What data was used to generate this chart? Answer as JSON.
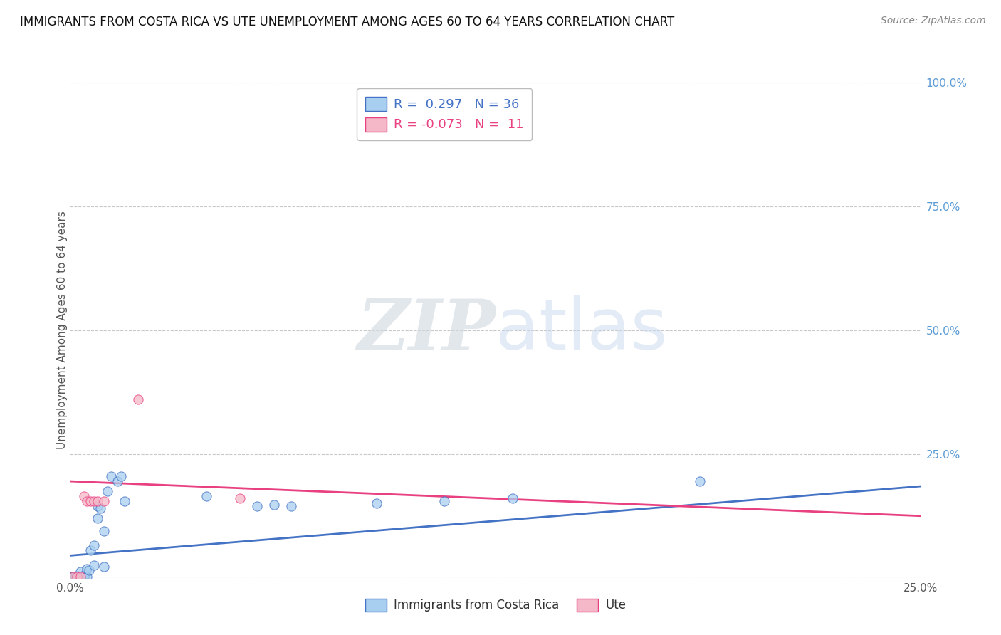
{
  "title": "IMMIGRANTS FROM COSTA RICA VS UTE UNEMPLOYMENT AMONG AGES 60 TO 64 YEARS CORRELATION CHART",
  "source": "Source: ZipAtlas.com",
  "ylabel": "Unemployment Among Ages 60 to 64 years",
  "legend_label1": "Immigrants from Costa Rica",
  "legend_label2": "Ute",
  "R1": 0.297,
  "N1": 36,
  "R2": -0.073,
  "N2": 11,
  "color1": "#A8CFF0",
  "color2": "#F5B8C8",
  "trendline1_color": "#4472C4",
  "trendline2_color": "#E84080",
  "xlim": [
    0.0,
    0.25
  ],
  "ylim": [
    0.0,
    1.0
  ],
  "watermark_zip": "ZIP",
  "watermark_atlas": "atlas",
  "background_color": "#FFFFFF",
  "grid_color": "#C8C8C8",
  "blue_scatter": [
    [
      0.0005,
      0.002
    ],
    [
      0.001,
      0.002
    ],
    [
      0.0015,
      0.002
    ],
    [
      0.002,
      0.002
    ],
    [
      0.002,
      0.004
    ],
    [
      0.0025,
      0.002
    ],
    [
      0.003,
      0.002
    ],
    [
      0.003,
      0.012
    ],
    [
      0.0035,
      0.002
    ],
    [
      0.004,
      0.002
    ],
    [
      0.004,
      0.002
    ],
    [
      0.0045,
      0.008
    ],
    [
      0.005,
      0.002
    ],
    [
      0.005,
      0.018
    ],
    [
      0.0055,
      0.015
    ],
    [
      0.006,
      0.055
    ],
    [
      0.007,
      0.025
    ],
    [
      0.007,
      0.065
    ],
    [
      0.008,
      0.12
    ],
    [
      0.008,
      0.145
    ],
    [
      0.009,
      0.14
    ],
    [
      0.01,
      0.095
    ],
    [
      0.01,
      0.022
    ],
    [
      0.011,
      0.175
    ],
    [
      0.012,
      0.205
    ],
    [
      0.014,
      0.195
    ],
    [
      0.015,
      0.205
    ],
    [
      0.016,
      0.155
    ],
    [
      0.04,
      0.165
    ],
    [
      0.055,
      0.145
    ],
    [
      0.06,
      0.148
    ],
    [
      0.065,
      0.145
    ],
    [
      0.09,
      0.15
    ],
    [
      0.11,
      0.155
    ],
    [
      0.13,
      0.16
    ],
    [
      0.185,
      0.195
    ]
  ],
  "pink_scatter": [
    [
      0.001,
      0.002
    ],
    [
      0.002,
      0.002
    ],
    [
      0.003,
      0.002
    ],
    [
      0.004,
      0.165
    ],
    [
      0.005,
      0.155
    ],
    [
      0.006,
      0.155
    ],
    [
      0.007,
      0.155
    ],
    [
      0.008,
      0.155
    ],
    [
      0.01,
      0.155
    ],
    [
      0.02,
      0.36
    ],
    [
      0.05,
      0.16
    ]
  ],
  "trendline1_x": [
    0.0,
    0.25
  ],
  "trendline1_y": [
    0.045,
    0.185
  ],
  "trendline2_x": [
    0.0,
    0.25
  ],
  "trendline2_y": [
    0.195,
    0.125
  ]
}
